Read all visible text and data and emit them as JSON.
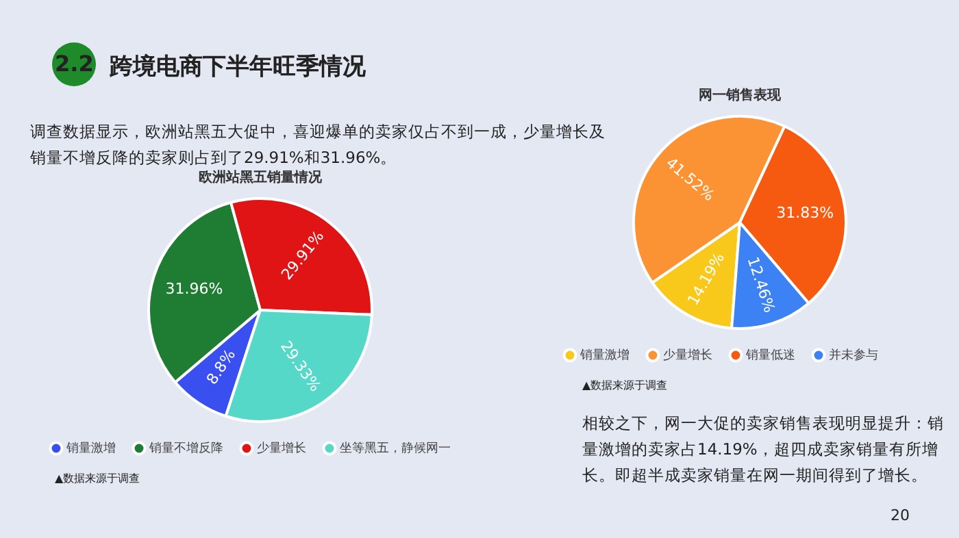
{
  "chart_data": [
    {
      "type": "pie",
      "title": "欧洲站黑五销量情况",
      "categories": [
        "销量激增",
        "销量不增反降",
        "少量增长",
        "坐等黑五，静候网一"
      ],
      "values": [
        8.8,
        31.96,
        29.91,
        29.33
      ],
      "value_labels": [
        "8.8%",
        "31.96%",
        "29.91%",
        "29.33%"
      ],
      "colors": [
        "#3a4ff0",
        "#1e7d32",
        "#e01414",
        "#55d8c8"
      ],
      "legend": "bottom",
      "annotations": [
        "2.2",
        "跨境电商下半年旺季情况",
        "调查数据显示，欧洲站黑五大促中，喜迎爆单的卖家仅占不到一成，少量增长及销量不增反降的卖家则占到了29.91%和31.96%。",
        "▲数据来源于调查"
      ]
    },
    {
      "type": "pie",
      "title": "网一销售表现",
      "categories": [
        "销量激增",
        "少量增长",
        "销量低迷",
        "并未参与"
      ],
      "values": [
        14.19,
        41.52,
        31.83,
        12.46
      ],
      "value_labels": [
        "14.19%",
        "41.52%",
        "31.83%",
        "12.46%"
      ],
      "colors": [
        "#f8c81a",
        "#fb9233",
        "#f55a10",
        "#3d82f5"
      ],
      "legend": "bottom",
      "annotations": [
        "▲数据来源于调查",
        "相较之下，网一大促的卖家销售表现明显提升：销量激增的卖家占14.19%，超四成卖家销量有所增长。即超半成卖家销量在网一期间得到了增长。",
        "20"
      ]
    }
  ]
}
